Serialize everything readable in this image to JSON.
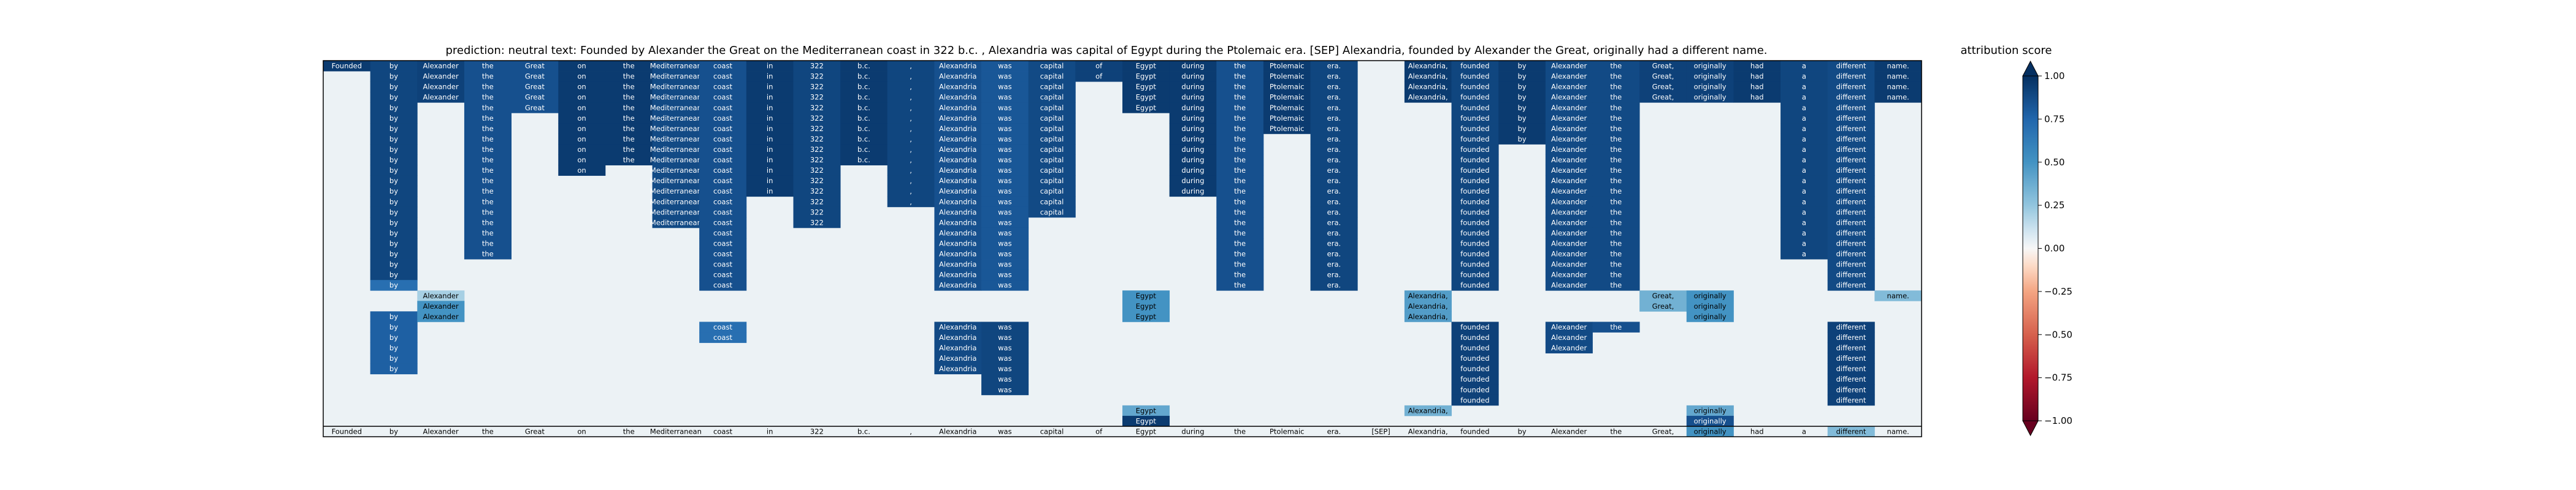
{
  "chart_data": {
    "type": "heatmap",
    "title": "prediction:  neutral     text:  Founded by Alexander the Great on the Mediterranean coast in 322 b.c. , Alexandria was capital of Egypt during the Ptolemaic era. [SEP] Alexandria, founded by Alexander the Great, originally had a different name.",
    "tokens": [
      "Founded",
      "by",
      "Alexander",
      "the",
      "Great",
      "on",
      "the",
      "Mediterranean",
      "coast",
      "in",
      "322",
      "b.c.",
      ",",
      "Alexandria",
      "was",
      "capital",
      "of",
      "Egypt",
      "during",
      "the",
      "Ptolemaic",
      "era.",
      "[SEP]",
      "Alexandria,",
      "founded",
      "by",
      "Alexander",
      "the",
      "Great,",
      "originally",
      "had",
      "a",
      "different",
      "name."
    ],
    "row_count": 36,
    "bands": [
      {
        "col": 0,
        "start": 0,
        "end": 0,
        "score": 0.95
      },
      {
        "col": 1,
        "start": 0,
        "end": 20,
        "score": 0.9
      },
      {
        "col": 1,
        "start": 21,
        "end": 21,
        "score": 0.7
      },
      {
        "col": 1,
        "start": 24,
        "end": 29,
        "score": 0.78
      },
      {
        "col": 2,
        "start": 0,
        "end": 3,
        "score": 0.92
      },
      {
        "col": 2,
        "start": 22,
        "end": 22,
        "score": 0.2
      },
      {
        "col": 2,
        "start": 23,
        "end": 24,
        "score": 0.5
      },
      {
        "col": 3,
        "start": 0,
        "end": 18,
        "score": 0.85
      },
      {
        "col": 4,
        "start": 0,
        "end": 4,
        "score": 0.85
      },
      {
        "col": 5,
        "start": 0,
        "end": 10,
        "score": 0.95
      },
      {
        "col": 6,
        "start": 0,
        "end": 9,
        "score": 0.95
      },
      {
        "col": 7,
        "start": 0,
        "end": 15,
        "score": 0.88
      },
      {
        "col": 8,
        "start": 0,
        "end": 21,
        "score": 0.85
      },
      {
        "col": 8,
        "start": 25,
        "end": 26,
        "score": 0.7
      },
      {
        "col": 9,
        "start": 0,
        "end": 12,
        "score": 0.95
      },
      {
        "col": 10,
        "start": 0,
        "end": 15,
        "score": 0.9
      },
      {
        "col": 11,
        "start": 0,
        "end": 9,
        "score": 0.95
      },
      {
        "col": 12,
        "start": 0,
        "end": 13,
        "score": 0.9
      },
      {
        "col": 13,
        "start": 0,
        "end": 21,
        "score": 0.85
      },
      {
        "col": 13,
        "start": 25,
        "end": 29,
        "score": 0.88
      },
      {
        "col": 14,
        "start": 0,
        "end": 21,
        "score": 0.82
      },
      {
        "col": 14,
        "start": 25,
        "end": 31,
        "score": 0.9
      },
      {
        "col": 15,
        "start": 0,
        "end": 14,
        "score": 0.88
      },
      {
        "col": 16,
        "start": 0,
        "end": 1,
        "score": 0.92
      },
      {
        "col": 17,
        "start": 0,
        "end": 4,
        "score": 0.95
      },
      {
        "col": 17,
        "start": 22,
        "end": 24,
        "score": 0.5
      },
      {
        "col": 17,
        "start": 33,
        "end": 33,
        "score": 0.4
      },
      {
        "col": 17,
        "start": 34,
        "end": 34,
        "score": 0.95
      },
      {
        "col": 18,
        "start": 0,
        "end": 12,
        "score": 0.95
      },
      {
        "col": 19,
        "start": 0,
        "end": 21,
        "score": 0.85
      },
      {
        "col": 20,
        "start": 0,
        "end": 6,
        "score": 0.95
      },
      {
        "col": 21,
        "start": 0,
        "end": 21,
        "score": 0.9
      },
      {
        "col": 23,
        "start": 0,
        "end": 3,
        "score": 0.95
      },
      {
        "col": 23,
        "start": 22,
        "end": 24,
        "score": 0.45
      },
      {
        "col": 23,
        "start": 33,
        "end": 33,
        "score": 0.35
      },
      {
        "col": 24,
        "start": 0,
        "end": 21,
        "score": 0.9
      },
      {
        "col": 24,
        "start": 25,
        "end": 32,
        "score": 0.92
      },
      {
        "col": 25,
        "start": 0,
        "end": 7,
        "score": 0.95
      },
      {
        "col": 26,
        "start": 0,
        "end": 21,
        "score": 0.88
      },
      {
        "col": 26,
        "start": 25,
        "end": 27,
        "score": 0.88
      },
      {
        "col": 27,
        "start": 0,
        "end": 21,
        "score": 0.88
      },
      {
        "col": 27,
        "start": 25,
        "end": 25,
        "score": 0.85
      },
      {
        "col": 28,
        "start": 0,
        "end": 3,
        "score": 0.92
      },
      {
        "col": 28,
        "start": 22,
        "end": 23,
        "score": 0.35
      },
      {
        "col": 29,
        "start": 0,
        "end": 3,
        "score": 0.92
      },
      {
        "col": 29,
        "start": 22,
        "end": 24,
        "score": 0.5
      },
      {
        "col": 29,
        "start": 33,
        "end": 33,
        "score": 0.4
      },
      {
        "col": 29,
        "start": 34,
        "end": 34,
        "score": 0.85
      },
      {
        "col": 29,
        "start": 35,
        "end": 35,
        "score": 0.5
      },
      {
        "col": 30,
        "start": 0,
        "end": 3,
        "score": 0.95
      },
      {
        "col": 31,
        "start": 0,
        "end": 18,
        "score": 0.9
      },
      {
        "col": 32,
        "start": 0,
        "end": 21,
        "score": 0.88
      },
      {
        "col": 32,
        "start": 25,
        "end": 32,
        "score": 0.92
      },
      {
        "col": 32,
        "start": 35,
        "end": 35,
        "score": 0.3
      },
      {
        "col": 33,
        "start": 0,
        "end": 3,
        "score": 0.95
      },
      {
        "col": 33,
        "start": 22,
        "end": 22,
        "score": 0.3
      }
    ],
    "colorbar": {
      "label": "attribution score",
      "range": [
        -1.0,
        1.0
      ],
      "ticks": [
        "1.00",
        "0.75",
        "0.50",
        "0.25",
        "0.00",
        "−0.25",
        "−0.50",
        "−0.75",
        "−1.00"
      ],
      "colormap": "RdBu",
      "extend": "both"
    }
  }
}
